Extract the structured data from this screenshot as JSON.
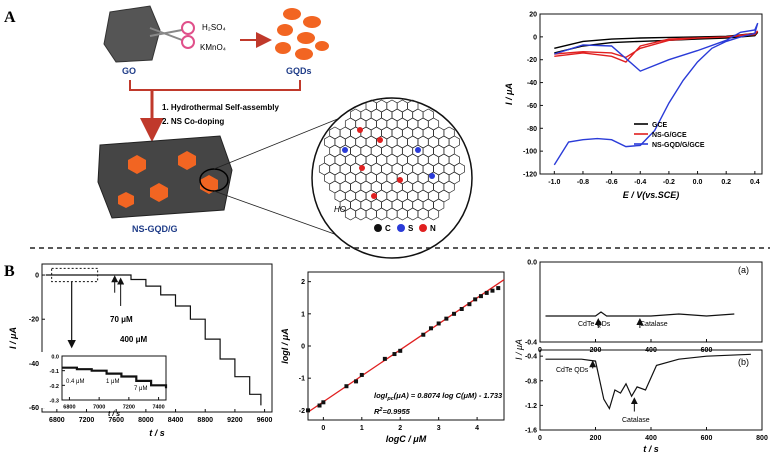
{
  "panel_a": {
    "label": "A",
    "go_label": "GO",
    "gqds_label": "GQDs",
    "reagent_1": "H₂SO₄",
    "reagent_2": "KMnO₄",
    "step_1": "1. Hydrothermal Self-assembly",
    "step_2": "2. NS Co-doping",
    "product_label": "NS-GQD/G",
    "molecule_group": "HO",
    "legend_c": "C",
    "legend_s": "S",
    "legend_n": "N",
    "colors": {
      "red_arrow": "#c0392b",
      "hexagon": "#f26522",
      "sheet": "#4a4a4a",
      "blue_text": "#1f3c88"
    }
  },
  "panel_b": {
    "label": "B",
    "amp_main": {
      "xlabel": "t / s",
      "ylabel": "I / μA",
      "ann_70": "70 μM",
      "ann_400": "400 μM"
    },
    "amp_inset": {
      "xlabel": "t / s",
      "ann_04": "0.4 μM",
      "ann_1": "1 μM",
      "ann_7": "7 μM"
    },
    "calib": {
      "xlabel": "logC / μM",
      "ylabel": "logI / μA",
      "eq_prefix": "logI",
      "eq_sub": "pc",
      "eq_rest": "(μA) = 0.8074 log C(μM) - 1.733",
      "r2_label": "R",
      "r2_sup": "2",
      "r2_value": "=0.9955"
    },
    "cell_a": {
      "tag": "(a)",
      "ann_1": "CdTe QDs",
      "ann_2": "Catalase"
    },
    "cell_b": {
      "tag": "(b)",
      "ann_1": "CdTe QDs",
      "ann_2": "Catalase",
      "xlabel": "t / s"
    },
    "cell_ylabel": "I / μA"
  },
  "chart_data": [
    {
      "type": "line",
      "xlabel": "E / V(vs.SCE)",
      "ylabel": "I / μA",
      "xlim": [
        -1.1,
        0.45
      ],
      "ylim": [
        -120,
        20
      ],
      "xticks": [
        "-1.0",
        "-0.8",
        "-0.6",
        "-0.4",
        "-0.2",
        "0.0",
        "0.2",
        "0.4"
      ],
      "yticks": [
        "20",
        "0",
        "-20",
        "-40",
        "-60",
        "-80",
        "-100",
        "-120"
      ],
      "legend_position": "right",
      "series": [
        {
          "name": "GCE",
          "color": "#000000",
          "x": [
            -1.0,
            -0.8,
            -0.6,
            -0.4,
            -0.2,
            0.0,
            0.2,
            0.4,
            0.42,
            0.4,
            0.2,
            0.0,
            -0.2,
            -0.4,
            -0.6,
            -0.8,
            -1.0
          ],
          "y": [
            -10,
            -4,
            -2,
            -1,
            -0.5,
            0,
            0.5,
            3,
            4,
            1,
            -1,
            -2,
            -3,
            -4,
            -5,
            -8,
            -14
          ]
        },
        {
          "name": "NS-G/GCE",
          "color": "#e02020",
          "x": [
            -1.0,
            -0.8,
            -0.6,
            -0.5,
            -0.4,
            -0.2,
            0.0,
            0.2,
            0.4,
            0.42,
            0.4,
            0.2,
            0.0,
            -0.2,
            -0.4,
            -0.5,
            -0.6,
            -0.8,
            -1.0
          ],
          "y": [
            -15,
            -13,
            -14,
            -18,
            -10,
            -3,
            -1,
            0,
            2,
            5,
            3,
            0,
            -1,
            -2,
            -8,
            -22,
            -17,
            -14,
            -17
          ]
        },
        {
          "name": "NS-GQD/G/GCE",
          "color": "#2a3bd8",
          "x": [
            -1.0,
            -0.9,
            -0.8,
            -0.7,
            -0.6,
            -0.5,
            -0.4,
            -0.3,
            -0.2,
            -0.1,
            0.0,
            0.1,
            0.2,
            0.3,
            0.4,
            0.42,
            0.4,
            0.3,
            0.2,
            0.0,
            -0.2,
            -0.4,
            -0.6,
            -0.8,
            -1.0
          ],
          "y": [
            -112,
            -92,
            -90,
            -89,
            -90,
            -96,
            -95,
            -82,
            -58,
            -38,
            -22,
            -10,
            -4,
            0,
            3,
            12,
            6,
            4,
            -3,
            -12,
            -20,
            -30,
            -8,
            -7,
            -15
          ]
        }
      ]
    },
    {
      "type": "line",
      "xlabel": "t / s",
      "ylabel": "I / μA",
      "xlim": [
        6600,
        9700
      ],
      "ylim": [
        -62,
        5
      ],
      "xticks": [
        "6800",
        "7200",
        "7600",
        "8000",
        "8400",
        "8800",
        "9200",
        "9600"
      ],
      "yticks": [
        "0",
        "-20",
        "-40",
        "-60"
      ],
      "series": [
        {
          "name": "",
          "x": [
            6650,
            7600,
            7800,
            8000,
            8200,
            8400,
            8600,
            8800,
            9000,
            9200,
            9400,
            9550
          ],
          "y": [
            0,
            0,
            -2,
            -5,
            -9,
            -14,
            -20,
            -29,
            -38,
            -46,
            -54,
            -59
          ]
        }
      ]
    },
    {
      "type": "line",
      "xlabel": "t / s",
      "xlim": [
        6750,
        7450
      ],
      "ylim": [
        -0.3,
        0.0
      ],
      "xticks": [
        "6800",
        "7000",
        "7200",
        "7400"
      ],
      "yticks": [
        "0.0",
        "-0.1",
        "-0.2",
        "-0.3"
      ],
      "series": [
        {
          "name": "",
          "x": [
            6750,
            6850,
            6950,
            7050,
            7150,
            7250,
            7350,
            7450
          ],
          "y": [
            -0.08,
            -0.09,
            -0.1,
            -0.12,
            -0.14,
            -0.17,
            -0.2,
            -0.22
          ]
        }
      ]
    },
    {
      "type": "scatter",
      "xlabel": "logC / μM",
      "ylabel": "logI / μA",
      "xlim": [
        -0.4,
        4.7
      ],
      "ylim": [
        -2.3,
        2.3
      ],
      "xticks": [
        "0",
        "1",
        "2",
        "3",
        "4"
      ],
      "yticks": [
        "2",
        "1",
        "0",
        "-1",
        "-2"
      ],
      "fit": {
        "slope": 0.8074,
        "intercept": -1.733
      },
      "series": [
        {
          "name": "",
          "x": [
            -0.4,
            -0.1,
            0.0,
            0.6,
            0.85,
            1.0,
            1.6,
            1.85,
            2.0,
            2.6,
            2.8,
            3.0,
            3.2,
            3.4,
            3.6,
            3.8,
            3.95,
            4.1,
            4.25,
            4.4,
            4.55
          ],
          "y": [
            -2.0,
            -1.85,
            -1.75,
            -1.25,
            -1.1,
            -0.9,
            -0.4,
            -0.25,
            -0.15,
            0.35,
            0.55,
            0.7,
            0.85,
            1.0,
            1.15,
            1.3,
            1.45,
            1.55,
            1.65,
            1.72,
            1.8
          ]
        }
      ]
    },
    {
      "type": "line",
      "xlim": [
        0,
        800
      ],
      "ylim": [
        -0.4,
        0.0
      ],
      "xticks": [
        "0",
        "200",
        "400",
        "600"
      ],
      "yticks": [
        "0.0",
        "-0.4"
      ],
      "series": [
        {
          "name": "",
          "x": [
            20,
            200,
            220,
            240,
            400,
            500,
            600,
            700
          ],
          "y": [
            -0.27,
            -0.27,
            -0.25,
            -0.27,
            -0.27,
            -0.26,
            -0.27,
            -0.26
          ]
        }
      ]
    },
    {
      "type": "line",
      "xlim": [
        0,
        800
      ],
      "ylim": [
        -1.6,
        -0.3
      ],
      "xticks": [
        "0",
        "200",
        "400",
        "600",
        "800"
      ],
      "yticks": [
        "-0.4",
        "-0.8",
        "-1.2",
        "-1.6"
      ],
      "series": [
        {
          "name": "",
          "x": [
            20,
            150,
            200,
            230,
            250,
            270,
            290,
            310,
            330,
            350,
            380,
            420,
            500,
            600,
            760
          ],
          "y": [
            -0.45,
            -0.45,
            -0.48,
            -1.1,
            -1.25,
            -0.95,
            -1.0,
            -0.85,
            -1.05,
            -0.9,
            -0.95,
            -0.55,
            -0.45,
            -0.4,
            -0.37
          ]
        }
      ]
    }
  ]
}
